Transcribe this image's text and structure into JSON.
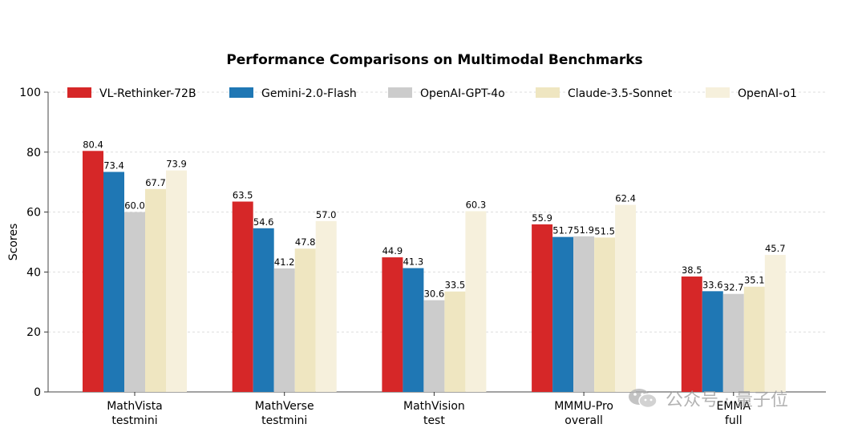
{
  "chart_data": {
    "type": "bar",
    "title": "Performance Comparisons on Multimodal Benchmarks",
    "xlabel": "",
    "ylabel": "Scores",
    "ylim": [
      0,
      100
    ],
    "yticks": [
      "0",
      "20",
      "40",
      "60",
      "80",
      "100"
    ],
    "grid": "horizontal dashed",
    "legend_position": "top",
    "categories": [
      "MathVista\ntestmini",
      "MathVerse\ntestmini",
      "MathVision\ntest",
      "MMMU-Pro\noverall",
      "EMMA\nfull"
    ],
    "series": [
      {
        "name": "VL-Rethinker-72B",
        "color": "#d62728",
        "values": [
          80.4,
          63.5,
          44.9,
          55.9,
          38.5
        ]
      },
      {
        "name": "Gemini-2.0-Flash",
        "color": "#1f77b4",
        "values": [
          73.4,
          54.6,
          41.3,
          51.7,
          33.6
        ]
      },
      {
        "name": "OpenAI-GPT-4o",
        "color": "#cccccc",
        "values": [
          60.0,
          41.2,
          30.6,
          51.9,
          32.7
        ]
      },
      {
        "name": "Claude-3.5-Sonnet",
        "color": "#efe6c1",
        "values": [
          67.7,
          47.8,
          33.5,
          51.5,
          35.1
        ]
      },
      {
        "name": "OpenAI-o1",
        "color": "#f6f0dc",
        "values": [
          73.9,
          57.0,
          60.3,
          62.4,
          45.7
        ]
      }
    ]
  },
  "watermark": {
    "text": "公众号 · 量子位",
    "icon": "wechat-icon"
  }
}
